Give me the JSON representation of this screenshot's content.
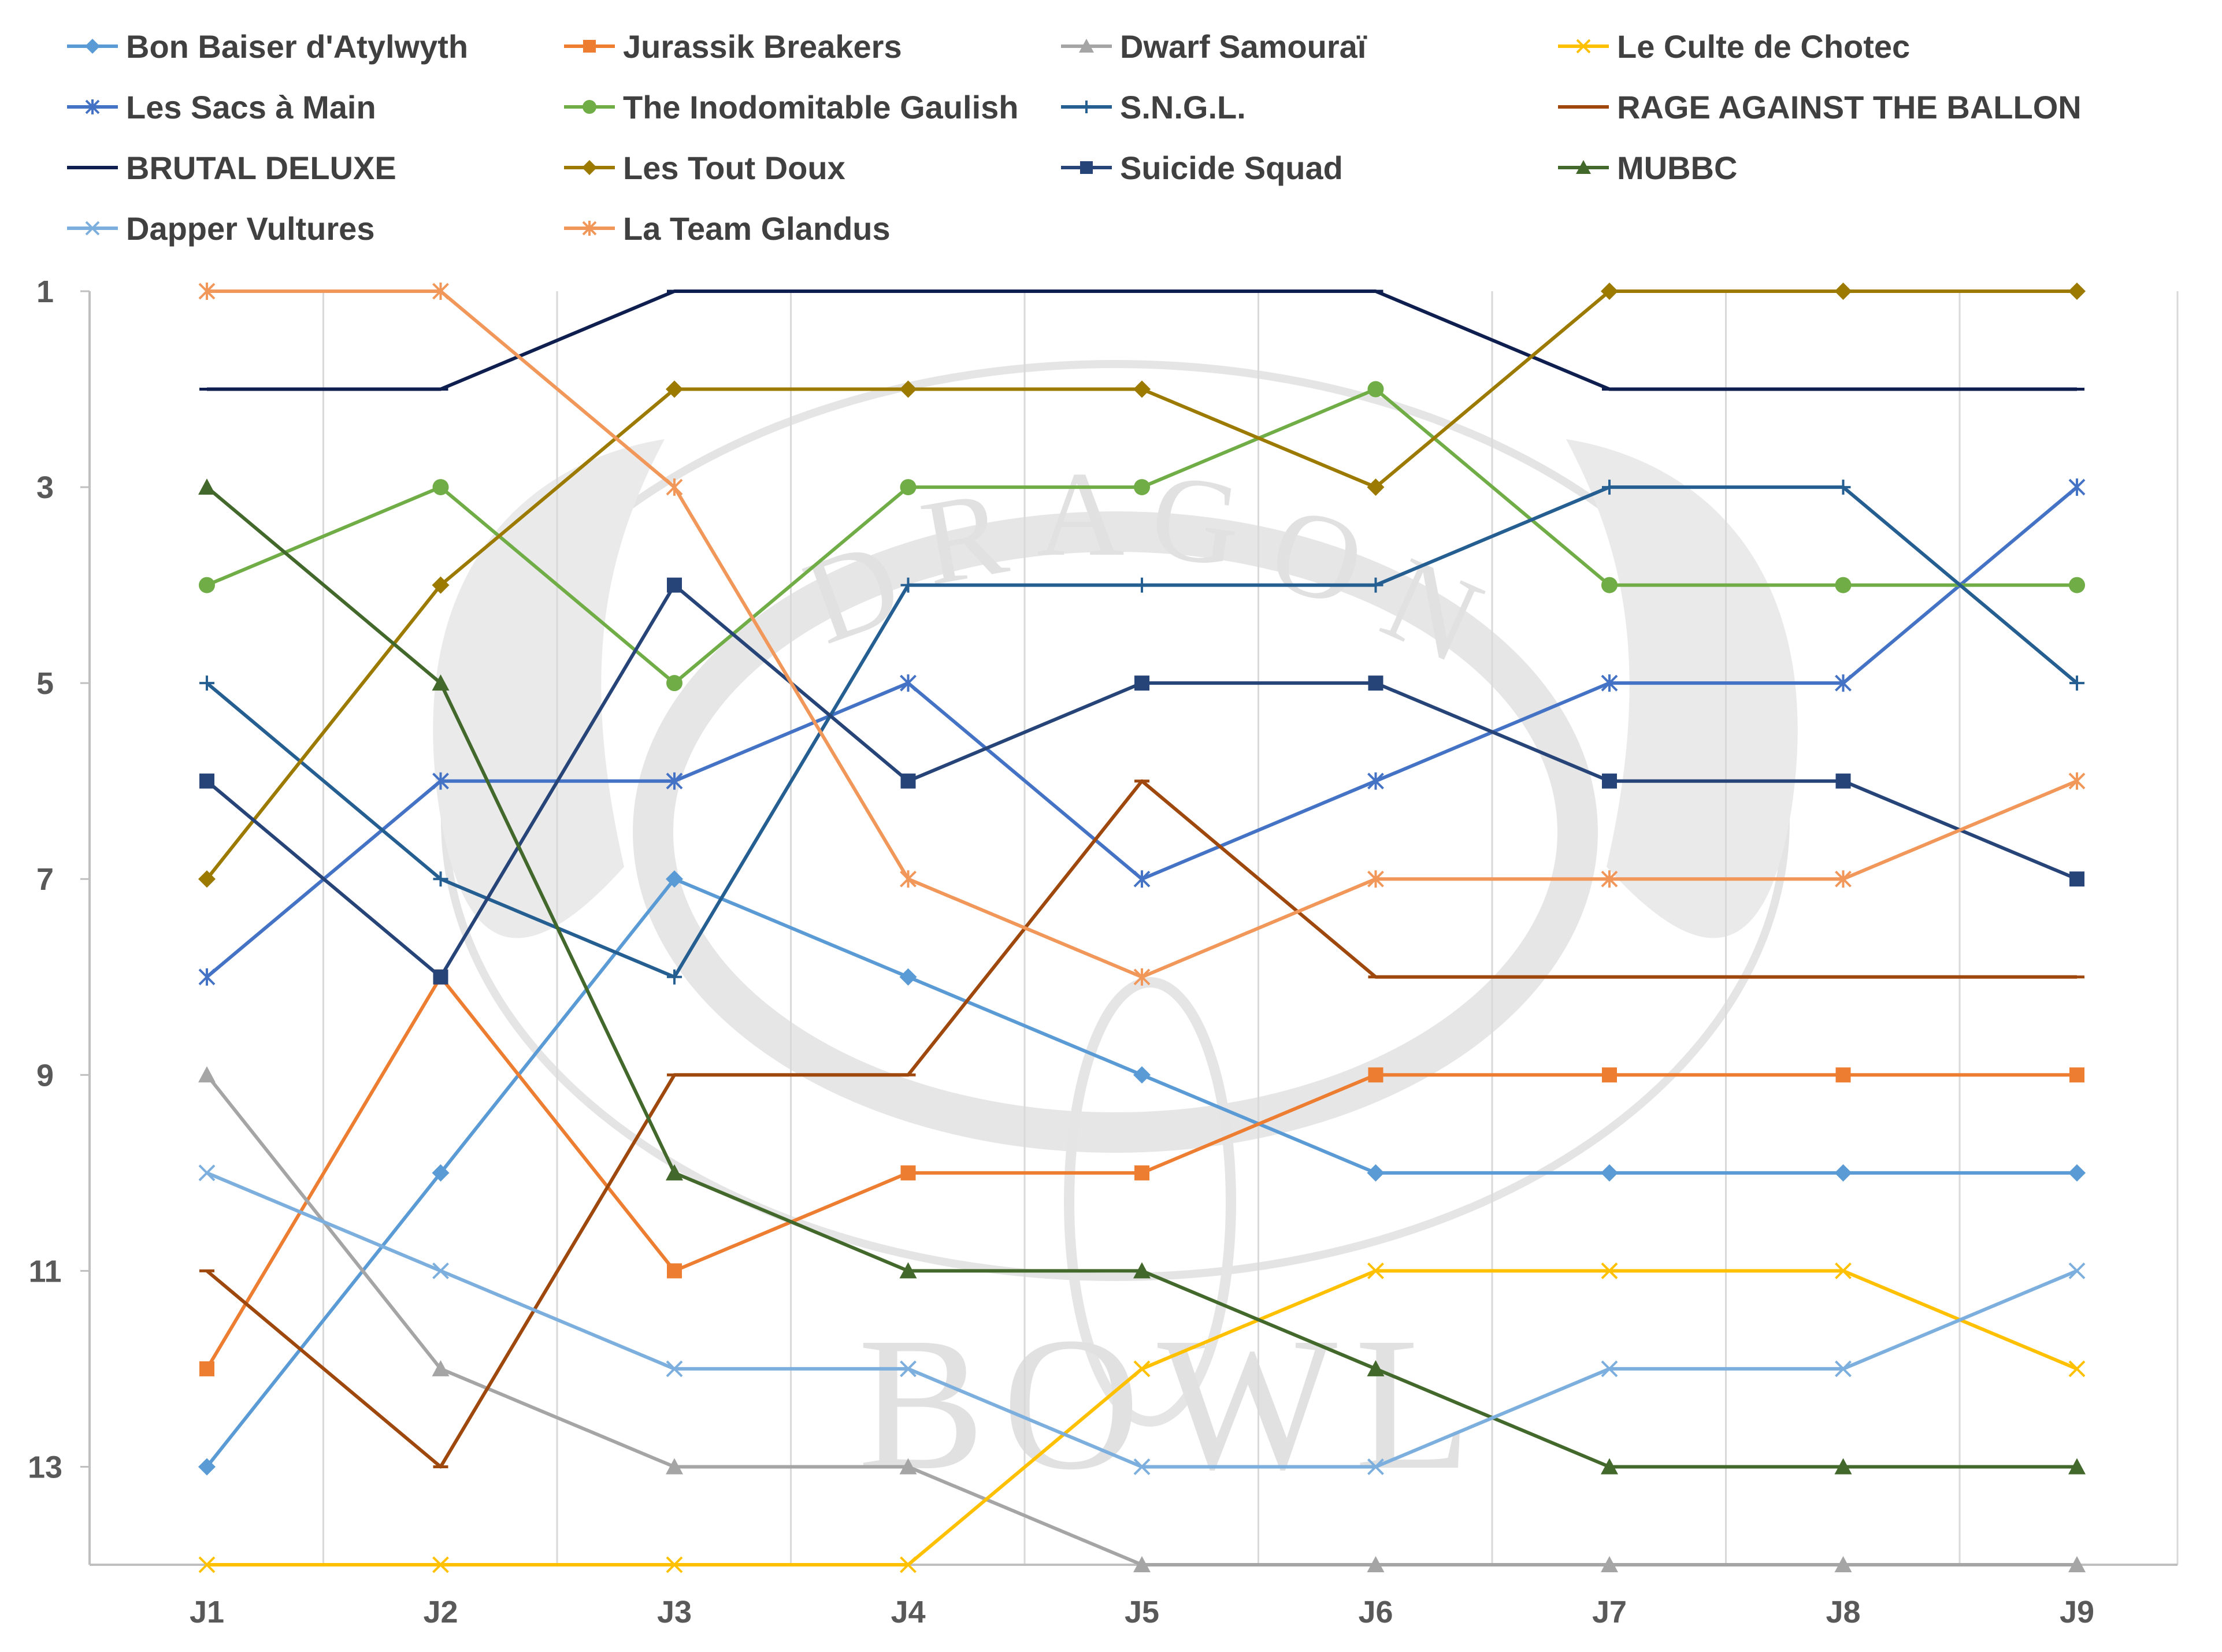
{
  "chart_data": {
    "type": "line",
    "categories": [
      "J1",
      "J2",
      "J3",
      "J4",
      "J5",
      "J6",
      "J7",
      "J8",
      "J9"
    ],
    "y_axis": {
      "reversed": true,
      "min": 1,
      "max": 14,
      "tick_labels": [
        "1",
        "3",
        "5",
        "7",
        "9",
        "11",
        "13"
      ]
    },
    "grid": {
      "vertical": true,
      "horizontal": false
    },
    "legend_position": "top",
    "watermark": {
      "words": [
        "DRAGON",
        "BOWL"
      ]
    },
    "series": [
      {
        "name": "Bon Baiser d'Atylwyth",
        "color": "#5B9BD5",
        "marker": "diamond",
        "values": [
          13,
          10,
          7,
          8,
          9,
          10,
          10,
          10,
          10
        ]
      },
      {
        "name": "Jurassik Breakers",
        "color": "#ED7D31",
        "marker": "square",
        "values": [
          12,
          8,
          11,
          10,
          10,
          9,
          9,
          9,
          9
        ]
      },
      {
        "name": "Dwarf Samouraï",
        "color": "#A5A5A5",
        "marker": "triangle",
        "values": [
          9,
          12,
          13,
          13,
          14,
          14,
          14,
          14,
          14
        ]
      },
      {
        "name": "Le Culte de Chotec",
        "color": "#FFC000",
        "marker": "x",
        "values": [
          14,
          14,
          14,
          14,
          12,
          11,
          11,
          11,
          12
        ]
      },
      {
        "name": "Les Sacs à Main",
        "color": "#4472C4",
        "marker": "star",
        "values": [
          8,
          6,
          6,
          5,
          7,
          6,
          5,
          5,
          3
        ]
      },
      {
        "name": "The Inodomitable Gaulish",
        "color": "#70AD47",
        "marker": "circle",
        "values": [
          4,
          3,
          5,
          3,
          3,
          2,
          4,
          4,
          4
        ]
      },
      {
        "name": "S.N.G.L.",
        "color": "#255E91",
        "marker": "plus",
        "values": [
          5,
          7,
          8,
          4,
          4,
          4,
          3,
          3,
          5
        ]
      },
      {
        "name": "RAGE AGAINST THE BALLON",
        "color": "#9E480E",
        "marker": "dash",
        "values": [
          11,
          13,
          9,
          9,
          6,
          8,
          8,
          8,
          8
        ]
      },
      {
        "name": "BRUTAL DELUXE",
        "color": "#0E1E4E",
        "marker": "dash",
        "values": [
          2,
          2,
          1,
          1,
          1,
          1,
          2,
          2,
          2
        ]
      },
      {
        "name": "Les Tout Doux",
        "color": "#9C7A00",
        "marker": "diamond",
        "values": [
          7,
          4,
          2,
          2,
          2,
          3,
          1,
          1,
          1
        ]
      },
      {
        "name": "Suicide Squad",
        "color": "#264478",
        "marker": "square",
        "values": [
          6,
          8,
          4,
          6,
          5,
          5,
          6,
          6,
          7
        ]
      },
      {
        "name": "MUBBC",
        "color": "#43682B",
        "marker": "triangle",
        "values": [
          3,
          5,
          10,
          11,
          11,
          12,
          13,
          13,
          13
        ]
      },
      {
        "name": "Dapper Vultures",
        "color": "#7CAFDD",
        "marker": "x",
        "values": [
          10,
          11,
          12,
          12,
          13,
          13,
          12,
          12,
          11
        ]
      },
      {
        "name": "La Team Glandus",
        "color": "#F1975A",
        "marker": "star",
        "values": [
          1,
          1,
          3,
          7,
          8,
          7,
          7,
          7,
          6
        ]
      }
    ]
  }
}
